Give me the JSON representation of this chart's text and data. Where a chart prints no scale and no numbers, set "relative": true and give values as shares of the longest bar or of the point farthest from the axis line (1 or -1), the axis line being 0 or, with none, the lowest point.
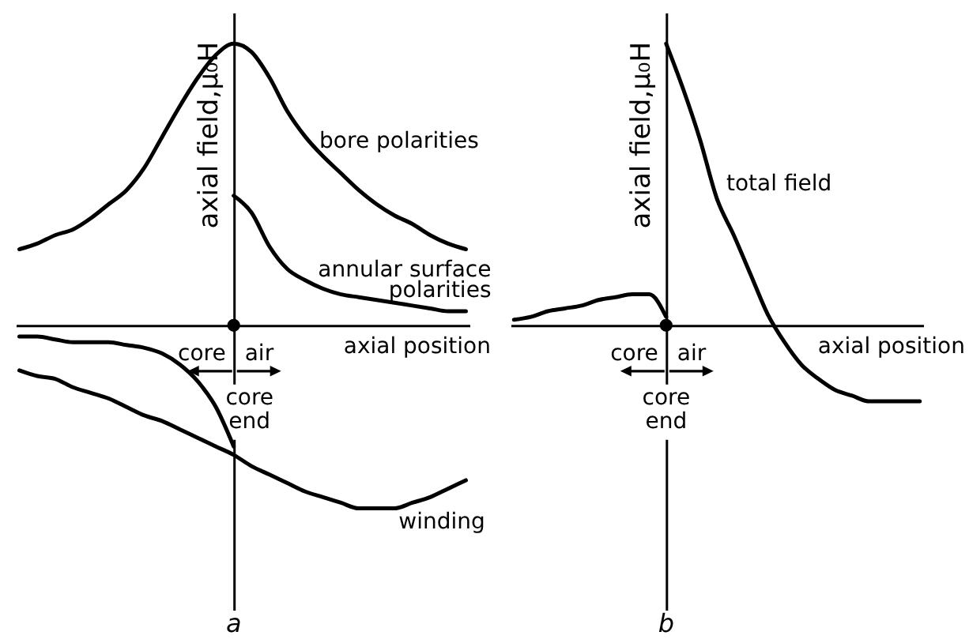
{
  "chart_data": [
    {
      "type": "line",
      "title": "a",
      "xlabel": "axial position",
      "ylabel": "axial field,μ₀H",
      "relative": true,
      "categories": [
        null,
        null,
        null,
        null,
        null,
        null,
        null,
        null,
        null,
        null,
        null,
        null,
        null,
        null,
        null,
        null,
        null,
        null,
        null,
        null,
        null,
        null,
        null,
        null,
        null,
        null
      ],
      "series": [
        {
          "name": "bore polarities",
          "color": "#000000",
          "values": [
            0.27,
            0.29,
            0.32,
            0.34,
            0.38,
            0.43,
            0.48,
            0.56,
            0.67,
            0.78,
            0.88,
            0.96,
            1.0,
            0.97,
            0.88,
            0.76,
            0.67,
            0.6,
            0.54,
            0.48,
            0.43,
            0.39,
            0.36,
            0.32,
            0.29,
            0.27
          ]
        },
        {
          "name": "annular surface polarities",
          "color": "#000000",
          "values": [
            null,
            null,
            null,
            null,
            null,
            null,
            null,
            null,
            null,
            null,
            null,
            null,
            0.46,
            0.4,
            0.28,
            0.2,
            0.16,
            0.13,
            0.11,
            0.1,
            0.09,
            0.08,
            0.07,
            0.06,
            0.05,
            0.05
          ]
        },
        {
          "color": "#000000",
          "values": [
            -0.04,
            -0.04,
            -0.05,
            -0.06,
            -0.06,
            -0.06,
            -0.07,
            -0.08,
            -0.1,
            -0.14,
            -0.2,
            -0.29,
            -0.43,
            null,
            null,
            null,
            null,
            null,
            null,
            null,
            null,
            null,
            null,
            null,
            null,
            null
          ]
        },
        {
          "name": "winding",
          "color": "#000000",
          "values": [
            -0.16,
            -0.18,
            -0.19,
            -0.22,
            -0.24,
            -0.26,
            -0.29,
            -0.32,
            -0.34,
            -0.37,
            -0.4,
            -0.43,
            -0.46,
            -0.5,
            -0.53,
            -0.56,
            -0.59,
            -0.61,
            -0.63,
            -0.65,
            -0.65,
            -0.65,
            -0.63,
            -0.61,
            -0.58,
            -0.55
          ]
        }
      ],
      "annotations": [
        "core",
        "air",
        "core end"
      ]
    },
    {
      "type": "line",
      "title": "b",
      "xlabel": "axial position",
      "ylabel": "axial field,μ₀H",
      "relative": true,
      "categories": [
        null,
        null,
        null,
        null,
        null,
        null,
        null,
        null,
        null,
        null,
        null,
        null,
        null,
        null,
        null,
        null,
        null,
        null,
        null,
        null,
        null,
        null,
        null,
        null,
        null
      ],
      "series": [
        {
          "color": "#000000",
          "values": [
            0.02,
            0.03,
            0.05,
            0.06,
            0.07,
            0.09,
            0.1,
            0.11,
            0.11,
            0.03,
            null,
            null,
            null,
            null,
            null,
            null,
            null,
            null,
            null,
            null,
            null,
            null,
            null,
            null,
            null
          ]
        },
        {
          "name": "total field",
          "color": "#000000",
          "values": [
            null,
            null,
            null,
            null,
            null,
            null,
            null,
            null,
            null,
            1.0,
            0.84,
            0.66,
            0.45,
            0.32,
            0.18,
            0.04,
            -0.06,
            -0.14,
            -0.19,
            -0.23,
            -0.25,
            -0.27,
            -0.27,
            -0.27,
            -0.27
          ]
        }
      ],
      "annotations": [
        "core",
        "air",
        "core end"
      ]
    }
  ]
}
